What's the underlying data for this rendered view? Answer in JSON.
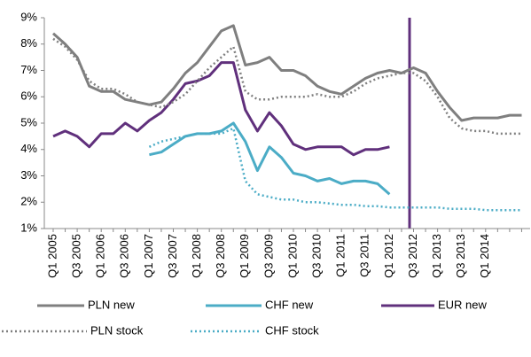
{
  "chart_data": {
    "type": "line",
    "categories": [
      "Q1 2005",
      null,
      "Q3 2005",
      null,
      "Q1 2006",
      null,
      "Q3 2006",
      null,
      "Q1 2007",
      null,
      "Q3 2007",
      null,
      "Q1 2008",
      null,
      "Q3 2008",
      null,
      "Q1 2009",
      null,
      "Q3 2009",
      null,
      "Q1 2010",
      null,
      "Q3 2010",
      null,
      "Q1 2011",
      null,
      "Q3 2011",
      null,
      "Q1 2012",
      null,
      "Q3 2012",
      null,
      "Q1 2013",
      null,
      "Q3 2013",
      null,
      "Q1 2014",
      null,
      null,
      null
    ],
    "series": [
      {
        "name": "PLN new",
        "color": "#7f7f7f",
        "style": "solid",
        "values": [
          8.4,
          8.0,
          7.5,
          6.4,
          6.2,
          6.2,
          5.9,
          5.8,
          5.7,
          5.8,
          6.3,
          6.9,
          7.3,
          7.9,
          8.5,
          8.7,
          7.2,
          7.3,
          7.5,
          7.0,
          7.0,
          6.8,
          6.4,
          6.2,
          6.1,
          6.4,
          6.7,
          6.9,
          7.0,
          6.9,
          7.1,
          6.9,
          6.2,
          5.6,
          5.1,
          5.2,
          5.2,
          5.2,
          5.3,
          5.3
        ]
      },
      {
        "name": "CHF new",
        "color": "#4bacc6",
        "style": "solid",
        "values": [
          null,
          null,
          null,
          null,
          null,
          null,
          null,
          null,
          3.8,
          3.9,
          4.2,
          4.5,
          4.6,
          4.6,
          4.7,
          5.0,
          4.3,
          3.2,
          4.1,
          3.7,
          3.1,
          3.0,
          2.8,
          2.9,
          2.7,
          2.8,
          2.8,
          2.7,
          2.3,
          null,
          null,
          null,
          null,
          null,
          null,
          null,
          null,
          null,
          null,
          null
        ]
      },
      {
        "name": "EUR new",
        "color": "#60307c",
        "style": "solid",
        "values": [
          4.5,
          4.7,
          4.5,
          4.1,
          4.6,
          4.6,
          5.0,
          4.7,
          5.1,
          5.4,
          5.9,
          6.5,
          6.6,
          6.8,
          7.3,
          7.3,
          5.5,
          4.7,
          5.4,
          4.9,
          4.2,
          4.0,
          4.1,
          4.1,
          4.1,
          3.8,
          4.0,
          4.0,
          4.1,
          null,
          null,
          null,
          null,
          null,
          null,
          null,
          null,
          null,
          null,
          null
        ]
      },
      {
        "name": "PLN stock",
        "color": "#7f7f7f",
        "style": "dotted",
        "values": [
          8.2,
          7.9,
          7.4,
          6.6,
          6.3,
          6.3,
          6.1,
          5.8,
          5.7,
          5.6,
          5.8,
          6.1,
          6.6,
          7.1,
          7.5,
          7.9,
          6.2,
          5.9,
          5.9,
          6.0,
          6.0,
          6.0,
          6.1,
          6.0,
          6.0,
          6.2,
          6.5,
          6.7,
          6.8,
          6.9,
          6.9,
          6.6,
          6.0,
          5.2,
          4.8,
          4.7,
          4.7,
          4.6,
          4.6,
          4.6
        ]
      },
      {
        "name": "CHF stock",
        "color": "#4bacc6",
        "style": "dotted",
        "values": [
          null,
          null,
          null,
          null,
          null,
          null,
          null,
          null,
          4.1,
          4.3,
          4.4,
          4.5,
          4.6,
          4.6,
          4.6,
          4.8,
          2.8,
          2.3,
          2.2,
          2.1,
          2.1,
          2.0,
          2.0,
          1.95,
          1.9,
          1.9,
          1.85,
          1.85,
          1.8,
          1.8,
          1.8,
          1.8,
          1.8,
          1.75,
          1.75,
          1.75,
          1.7,
          1.7,
          1.7,
          1.7
        ]
      }
    ],
    "ylim": [
      1,
      9
    ],
    "yticks": [
      {
        "value": 1,
        "label": "1%"
      },
      {
        "value": 2,
        "label": "2%"
      },
      {
        "value": 3,
        "label": "3%"
      },
      {
        "value": 4,
        "label": "4%"
      },
      {
        "value": 5,
        "label": "5%"
      },
      {
        "value": 6,
        "label": "6%"
      },
      {
        "value": 7,
        "label": "7%"
      },
      {
        "value": 8,
        "label": "8%"
      },
      {
        "value": 9,
        "label": "9%"
      }
    ],
    "grid": false
  }
}
